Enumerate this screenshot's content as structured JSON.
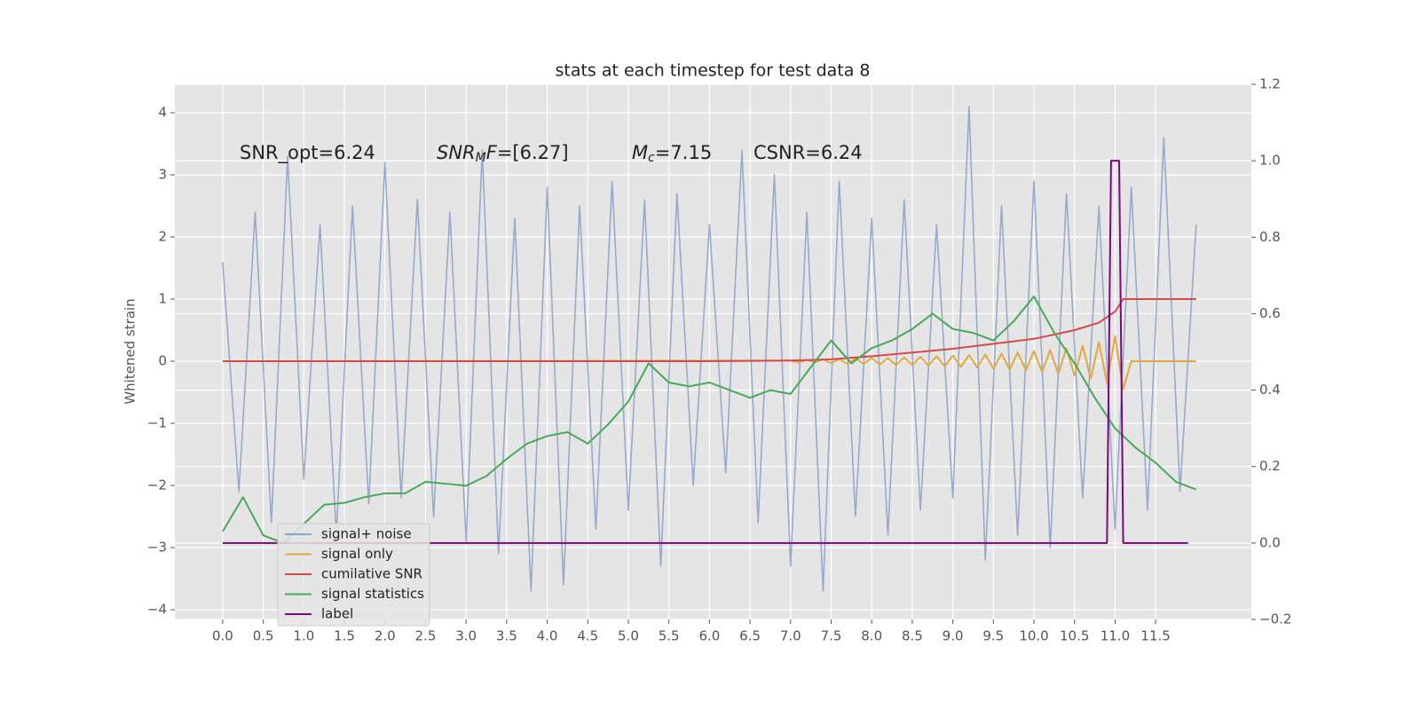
{
  "chart_data": {
    "type": "line",
    "title": "stats at each timestep for test data 8",
    "ylabel": "Whitened strain",
    "annotations": [
      {
        "parts": [
          "SNR_opt=6.24"
        ]
      },
      {
        "parts": [
          "SNR",
          "M",
          "F",
          "=[6.27]"
        ]
      },
      {
        "parts": [
          "M",
          "c",
          "=7.15"
        ]
      },
      {
        "parts": [
          "CSNR=6.24"
        ]
      }
    ],
    "xlim": [
      -0.59,
      12.68
    ],
    "ylim": [
      -4.157,
      4.457
    ],
    "y2lim": [
      -0.2,
      1.2
    ],
    "xticks": [
      {
        "value": 0,
        "label": "0.0"
      },
      0.5,
      {
        "value": 1,
        "label": "1.0"
      },
      1.5,
      {
        "value": 2,
        "label": "2.0"
      },
      2.5,
      {
        "value": 3,
        "label": "3.0"
      },
      3.5,
      {
        "value": 4,
        "label": "4.0"
      },
      4.5,
      {
        "value": 5,
        "label": "5.0"
      },
      5.5,
      {
        "value": 6,
        "label": "6.0"
      },
      6.5,
      {
        "value": 7,
        "label": "7.0"
      },
      7.5,
      {
        "value": 8,
        "label": "8.0"
      },
      8.5,
      {
        "value": 9,
        "label": "9.0"
      },
      9.5,
      {
        "value": 10,
        "label": "10.0"
      },
      10.5,
      {
        "value": 11,
        "label": "11.0"
      },
      11.5
    ],
    "yticks": [
      {
        "value": -4,
        "label": "−4"
      },
      {
        "value": -3,
        "label": "−3"
      },
      {
        "value": -2,
        "label": "−2"
      },
      {
        "value": -1,
        "label": "−1"
      },
      0,
      1,
      2,
      3,
      4
    ],
    "y2ticks": [
      {
        "value": -0.2,
        "label": "−0.2"
      },
      {
        "value": 0,
        "label": "0.0"
      },
      0.2,
      0.4,
      0.6,
      0.8,
      {
        "value": 1,
        "label": "1.0"
      },
      1.2
    ],
    "grid": true,
    "legend": "lower left",
    "series": [
      {
        "name": "signal+ noise",
        "color": "#8da3cb",
        "x": [
          0,
          0.2,
          0.4,
          0.6,
          0.8,
          1,
          1.2,
          1.4,
          1.6,
          1.8,
          2,
          2.2,
          2.4,
          2.6,
          2.8,
          3,
          3.2,
          3.4,
          3.6,
          3.8,
          4,
          4.2,
          4.4,
          4.6,
          4.8,
          5,
          5.2,
          5.4,
          5.6,
          5.8,
          6,
          6.2,
          6.4,
          6.6,
          6.8,
          7,
          7.2,
          7.4,
          7.6,
          7.8,
          8,
          8.2,
          8.4,
          8.6,
          8.8,
          9,
          9.2,
          9.4,
          9.6,
          9.8,
          10,
          10.2,
          10.4,
          10.6,
          10.8,
          11,
          11.2,
          11.4,
          11.6,
          11.8,
          12
        ],
        "values": [
          1.6,
          -2.1,
          2.4,
          -2.6,
          3.3,
          -1.9,
          2.2,
          -2.8,
          2.5,
          -2.3,
          3.2,
          -2.2,
          2.6,
          -2.5,
          2.4,
          -2.9,
          3.4,
          -3.1,
          2.3,
          -3.7,
          2.8,
          -3.6,
          2.5,
          -2.7,
          2.9,
          -2.4,
          2.6,
          -3.3,
          2.7,
          -2.0,
          2.2,
          -1.8,
          3.4,
          -2.6,
          3.0,
          -3.3,
          2.4,
          -3.7,
          2.9,
          -2.5,
          2.3,
          -2.8,
          2.6,
          -2.4,
          2.2,
          -2.2,
          4.1,
          -3.2,
          2.5,
          -2.8,
          2.9,
          -3.0,
          2.7,
          -2.2,
          2.5,
          -2.7,
          2.8,
          -2.4,
          3.6,
          -2.1,
          2.2
        ]
      },
      {
        "name": "signal only",
        "color": "#dfa940",
        "x": [
          0,
          7,
          7.1,
          7.2,
          7.3,
          7.4,
          7.5,
          7.6,
          7.7,
          7.8,
          7.9,
          8,
          8.1,
          8.2,
          8.3,
          8.4,
          8.5,
          8.6,
          8.7,
          8.8,
          8.9,
          9,
          9.1,
          9.2,
          9.3,
          9.4,
          9.5,
          9.6,
          9.7,
          9.8,
          9.9,
          10,
          10.1,
          10.2,
          10.3,
          10.4,
          10.5,
          10.6,
          10.7,
          10.8,
          10.9,
          11,
          11.1,
          11.2,
          12
        ],
        "values": [
          0,
          0.01,
          -0.02,
          0.02,
          -0.02,
          0.03,
          -0.03,
          0.03,
          -0.04,
          0.04,
          -0.04,
          0.05,
          -0.05,
          0.05,
          -0.06,
          0.06,
          -0.06,
          0.07,
          -0.07,
          0.08,
          -0.08,
          0.09,
          -0.09,
          0.1,
          -0.1,
          0.11,
          -0.12,
          0.12,
          -0.13,
          0.14,
          -0.15,
          0.16,
          -0.17,
          0.18,
          -0.2,
          0.21,
          -0.23,
          0.25,
          -0.28,
          0.31,
          -0.35,
          0.4,
          -0.45,
          0,
          0
        ]
      },
      {
        "name": "cumilative SNR",
        "color": "#d44a4a",
        "x": [
          0,
          1,
          2,
          3,
          4,
          5,
          6,
          7,
          7.5,
          8,
          8.5,
          9,
          9.5,
          10,
          10.5,
          10.8,
          11,
          11.1,
          12
        ],
        "values": [
          0,
          0,
          0,
          0,
          0,
          0,
          0,
          0.01,
          0.03,
          0.08,
          0.14,
          0.2,
          0.28,
          0.36,
          0.5,
          0.62,
          0.8,
          1.0,
          1.0
        ]
      },
      {
        "name": "signal statistics",
        "color": "#4aa85a",
        "axis": "y2",
        "x": [
          0,
          0.25,
          0.5,
          0.75,
          1,
          1.25,
          1.5,
          1.75,
          2,
          2.25,
          2.5,
          2.75,
          3,
          3.25,
          3.5,
          3.75,
          4,
          4.25,
          4.5,
          4.75,
          5,
          5.25,
          5.5,
          5.75,
          6,
          6.25,
          6.5,
          6.75,
          7,
          7.25,
          7.5,
          7.75,
          8,
          8.25,
          8.5,
          8.75,
          9,
          9.25,
          9.5,
          9.75,
          10,
          10.25,
          10.5,
          10.75,
          11,
          11.25,
          11.5,
          11.75,
          12
        ],
        "values": [
          0.03,
          0.12,
          0.02,
          0.0,
          0.05,
          0.1,
          0.105,
          0.12,
          0.13,
          0.13,
          0.16,
          0.155,
          0.15,
          0.175,
          0.22,
          0.26,
          0.28,
          0.29,
          0.26,
          0.31,
          0.37,
          0.47,
          0.42,
          0.41,
          0.42,
          0.4,
          0.38,
          0.4,
          0.39,
          0.46,
          0.53,
          0.47,
          0.51,
          0.53,
          0.56,
          0.6,
          0.56,
          0.55,
          0.53,
          0.58,
          0.645,
          0.55,
          0.47,
          0.38,
          0.3,
          0.25,
          0.21,
          0.16,
          0.14
        ]
      },
      {
        "name": "label",
        "color": "#7a0a7a",
        "axis": "y2",
        "x": [
          0,
          10.9,
          10.95,
          11.05,
          11.1,
          11.9
        ],
        "values": [
          0,
          0,
          1,
          1,
          0,
          0
        ]
      }
    ]
  }
}
